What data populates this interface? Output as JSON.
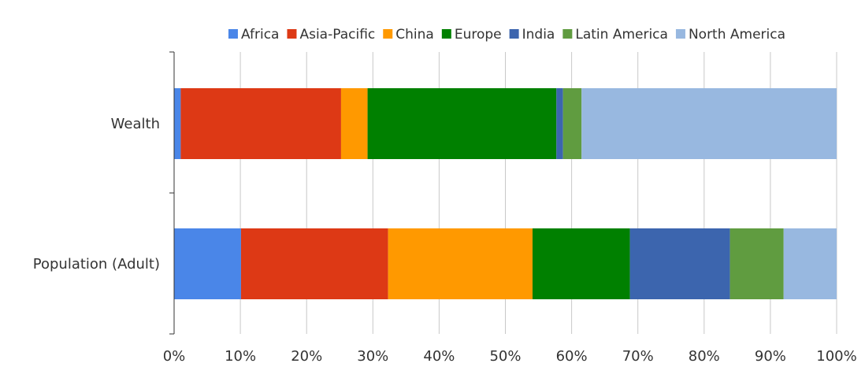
{
  "chart_data": {
    "type": "bar",
    "orientation": "horizontal",
    "stacked": "percent",
    "title": "",
    "xlabel": "",
    "ylabel": "",
    "xlim": [
      0,
      100
    ],
    "x_tick_labels": [
      "0%",
      "10%",
      "20%",
      "30%",
      "40%",
      "50%",
      "60%",
      "70%",
      "80%",
      "90%",
      "100%"
    ],
    "categories": [
      "Wealth",
      "Population (Adult)"
    ],
    "series": [
      {
        "name": "Africa",
        "color": "#4a86e8",
        "values": [
          1.0,
          10.1
        ]
      },
      {
        "name": "Asia-Pacific",
        "color": "#dd3915",
        "values": [
          24.2,
          22.2
        ]
      },
      {
        "name": "China",
        "color": "#ff9900",
        "values": [
          4.0,
          21.8
        ]
      },
      {
        "name": "Europe",
        "color": "#008000",
        "values": [
          28.5,
          14.7
        ]
      },
      {
        "name": "India",
        "color": "#3c65ae",
        "values": [
          1.0,
          15.1
        ]
      },
      {
        "name": "Latin America",
        "color": "#609c40",
        "values": [
          2.8,
          8.1
        ]
      },
      {
        "name": "North America",
        "color": "#98b8e0",
        "values": [
          38.5,
          8.0
        ]
      }
    ],
    "grid": true,
    "legend_position": "top"
  }
}
